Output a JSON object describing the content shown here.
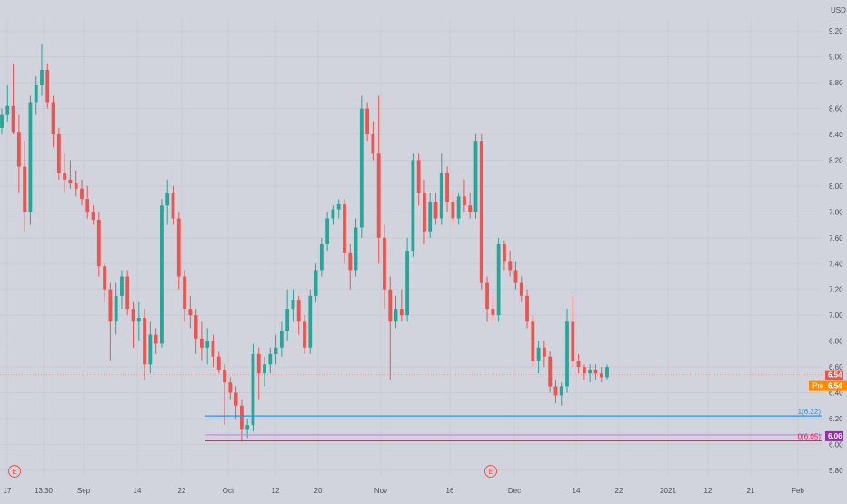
{
  "axis": {
    "currency": "USD",
    "price_ticks": [
      "9.20",
      "9.00",
      "8.80",
      "8.60",
      "8.40",
      "8.20",
      "8.00",
      "7.80",
      "7.60",
      "7.40",
      "7.20",
      "7.00",
      "6.80",
      "6.60",
      "6.40",
      "6.20",
      "6.00",
      "5.80"
    ],
    "time_ticks": [
      "17",
      "13:30",
      "Sep",
      "14",
      "22",
      "Oct",
      "12",
      "20",
      "Nov",
      "16",
      "Dec",
      "14",
      "22",
      "2021",
      "12",
      "21",
      "Feb"
    ]
  },
  "labels": {
    "last_price": "6.54",
    "pre_label": "Pre",
    "pre_price": "6.54",
    "level_purple": "6.06",
    "fib_1": "1(6.22)",
    "fib_0": "0(6.05)",
    "event_marker": "E"
  },
  "colors": {
    "bg": "#d1d4dc",
    "up": "#26a69a",
    "down": "#ef5350",
    "dark": "#131722",
    "blue_line": "#2196f3",
    "magenta_line": "#e91e63",
    "violet_line": "#c28de0",
    "last_price_badge": "#ef5350",
    "pre_badge": "#fb8c00",
    "purple_badge": "#9c27b0"
  },
  "chart_data": {
    "type": "candlestick",
    "y_range": [
      5.75,
      9.3
    ],
    "fib_levels": [
      6.22,
      6.05
    ],
    "purple_level": 6.06,
    "last_price": 6.54,
    "ohlc": [
      [
        8.45,
        8.6,
        8.4,
        8.55
      ],
      [
        8.55,
        8.78,
        8.5,
        8.62
      ],
      [
        8.62,
        8.95,
        8.4,
        8.42
      ],
      [
        8.42,
        8.55,
        7.95,
        8.15
      ],
      [
        8.15,
        8.35,
        7.65,
        7.8
      ],
      [
        7.8,
        8.7,
        7.7,
        8.65
      ],
      [
        8.65,
        8.85,
        8.55,
        8.78
      ],
      [
        8.78,
        9.1,
        8.7,
        8.9
      ],
      [
        8.9,
        8.95,
        8.6,
        8.65
      ],
      [
        8.65,
        8.7,
        8.3,
        8.4
      ],
      [
        8.4,
        8.45,
        8.05,
        8.1
      ],
      [
        8.1,
        8.25,
        7.95,
        8.05
      ],
      [
        8.05,
        8.2,
        7.98,
        8.02
      ],
      [
        8.02,
        8.12,
        7.92,
        7.98
      ],
      [
        7.98,
        8.05,
        7.85,
        7.9
      ],
      [
        7.9,
        8.0,
        7.75,
        7.8
      ],
      [
        7.8,
        7.85,
        7.7,
        7.74
      ],
      [
        7.74,
        7.8,
        7.3,
        7.38
      ],
      [
        7.38,
        7.4,
        7.1,
        7.2
      ],
      [
        7.2,
        7.25,
        6.65,
        6.95
      ],
      [
        6.95,
        7.25,
        6.85,
        7.15
      ],
      [
        7.15,
        7.35,
        7.05,
        7.3
      ],
      [
        7.3,
        7.35,
        7.0,
        7.05
      ],
      [
        7.05,
        7.1,
        6.75,
        6.95
      ],
      [
        6.95,
        7.1,
        6.8,
        6.98
      ],
      [
        6.98,
        7.05,
        6.5,
        6.62
      ],
      [
        6.62,
        6.95,
        6.55,
        6.85
      ],
      [
        6.85,
        6.9,
        6.7,
        6.78
      ],
      [
        6.78,
        7.9,
        6.75,
        7.85
      ],
      [
        7.85,
        8.05,
        7.7,
        7.95
      ],
      [
        7.95,
        8.0,
        7.7,
        7.75
      ],
      [
        7.75,
        7.8,
        7.2,
        7.3
      ],
      [
        7.3,
        7.35,
        6.95,
        7.05
      ],
      [
        7.05,
        7.15,
        6.9,
        7.0
      ],
      [
        7.0,
        7.05,
        6.7,
        6.82
      ],
      [
        6.82,
        6.95,
        6.65,
        6.75
      ],
      [
        6.75,
        6.9,
        6.62,
        6.8
      ],
      [
        6.8,
        6.85,
        6.6,
        6.68
      ],
      [
        6.68,
        6.72,
        6.55,
        6.58
      ],
      [
        6.58,
        6.62,
        6.15,
        6.48
      ],
      [
        6.48,
        6.52,
        6.35,
        6.4
      ],
      [
        6.4,
        6.45,
        6.2,
        6.3
      ],
      [
        6.3,
        6.35,
        6.02,
        6.12
      ],
      [
        6.12,
        6.2,
        6.05,
        6.15
      ],
      [
        6.15,
        6.78,
        6.1,
        6.7
      ],
      [
        6.7,
        6.75,
        6.35,
        6.55
      ],
      [
        6.55,
        6.68,
        6.45,
        6.62
      ],
      [
        6.62,
        6.75,
        6.55,
        6.7
      ],
      [
        6.7,
        6.85,
        6.62,
        6.75
      ],
      [
        6.75,
        6.95,
        6.68,
        6.88
      ],
      [
        6.88,
        7.2,
        6.8,
        7.05
      ],
      [
        7.05,
        7.2,
        6.95,
        7.12
      ],
      [
        7.12,
        7.15,
        6.85,
        6.95
      ],
      [
        6.95,
        7.0,
        6.7,
        6.75
      ],
      [
        6.75,
        7.2,
        6.7,
        7.15
      ],
      [
        7.15,
        7.4,
        7.1,
        7.35
      ],
      [
        7.35,
        7.6,
        7.3,
        7.55
      ],
      [
        7.55,
        7.8,
        7.5,
        7.75
      ],
      [
        7.75,
        7.85,
        7.7,
        7.82
      ],
      [
        7.82,
        7.9,
        7.75,
        7.86
      ],
      [
        7.86,
        7.9,
        7.4,
        7.48
      ],
      [
        7.48,
        7.55,
        7.2,
        7.35
      ],
      [
        7.35,
        7.75,
        7.3,
        7.68
      ],
      [
        7.68,
        8.7,
        7.6,
        8.6
      ],
      [
        8.6,
        8.65,
        8.35,
        8.4
      ],
      [
        8.4,
        8.5,
        8.2,
        8.25
      ],
      [
        8.25,
        8.7,
        7.4,
        7.6
      ],
      [
        7.6,
        7.7,
        7.05,
        7.2
      ],
      [
        7.2,
        7.3,
        6.5,
        6.95
      ],
      [
        6.95,
        7.15,
        6.9,
        7.05
      ],
      [
        7.05,
        7.2,
        6.95,
        7.0
      ],
      [
        7.0,
        7.6,
        6.95,
        7.5
      ],
      [
        7.5,
        8.25,
        7.45,
        8.2
      ],
      [
        8.2,
        8.25,
        7.85,
        7.95
      ],
      [
        7.95,
        8.05,
        7.55,
        7.65
      ],
      [
        7.65,
        7.95,
        7.6,
        7.88
      ],
      [
        7.88,
        7.95,
        7.7,
        7.75
      ],
      [
        7.75,
        8.25,
        7.7,
        8.1
      ],
      [
        8.1,
        8.15,
        7.8,
        7.88
      ],
      [
        7.88,
        7.95,
        7.7,
        7.75
      ],
      [
        7.75,
        7.95,
        7.7,
        7.92
      ],
      [
        7.92,
        8.05,
        7.8,
        7.85
      ],
      [
        7.85,
        7.95,
        7.75,
        7.8
      ],
      [
        7.8,
        8.4,
        7.75,
        8.35
      ],
      [
        8.35,
        8.4,
        7.2,
        7.25
      ],
      [
        7.25,
        7.3,
        6.95,
        7.05
      ],
      [
        7.05,
        7.15,
        6.95,
        7.0
      ],
      [
        7.0,
        7.6,
        6.95,
        7.55
      ],
      [
        7.55,
        7.58,
        7.35,
        7.42
      ],
      [
        7.42,
        7.5,
        7.3,
        7.35
      ],
      [
        7.35,
        7.42,
        7.2,
        7.25
      ],
      [
        7.25,
        7.3,
        7.1,
        7.15
      ],
      [
        7.15,
        7.2,
        6.9,
        6.95
      ],
      [
        6.95,
        7.0,
        6.6,
        6.65
      ],
      [
        6.65,
        6.8,
        6.55,
        6.75
      ],
      [
        6.75,
        6.8,
        6.6,
        6.68
      ],
      [
        6.68,
        6.72,
        6.4,
        6.45
      ],
      [
        6.45,
        6.5,
        6.32,
        6.38
      ],
      [
        6.38,
        6.48,
        6.3,
        6.45
      ],
      [
        6.45,
        7.05,
        6.4,
        6.95
      ],
      [
        6.95,
        7.15,
        6.6,
        6.65
      ],
      [
        6.65,
        6.7,
        6.55,
        6.6
      ],
      [
        6.6,
        6.62,
        6.5,
        6.55
      ],
      [
        6.55,
        6.62,
        6.48,
        6.58
      ],
      [
        6.58,
        6.62,
        6.5,
        6.55
      ],
      [
        6.55,
        6.6,
        6.48,
        6.52
      ],
      [
        6.52,
        6.62,
        6.5,
        6.6
      ]
    ]
  }
}
